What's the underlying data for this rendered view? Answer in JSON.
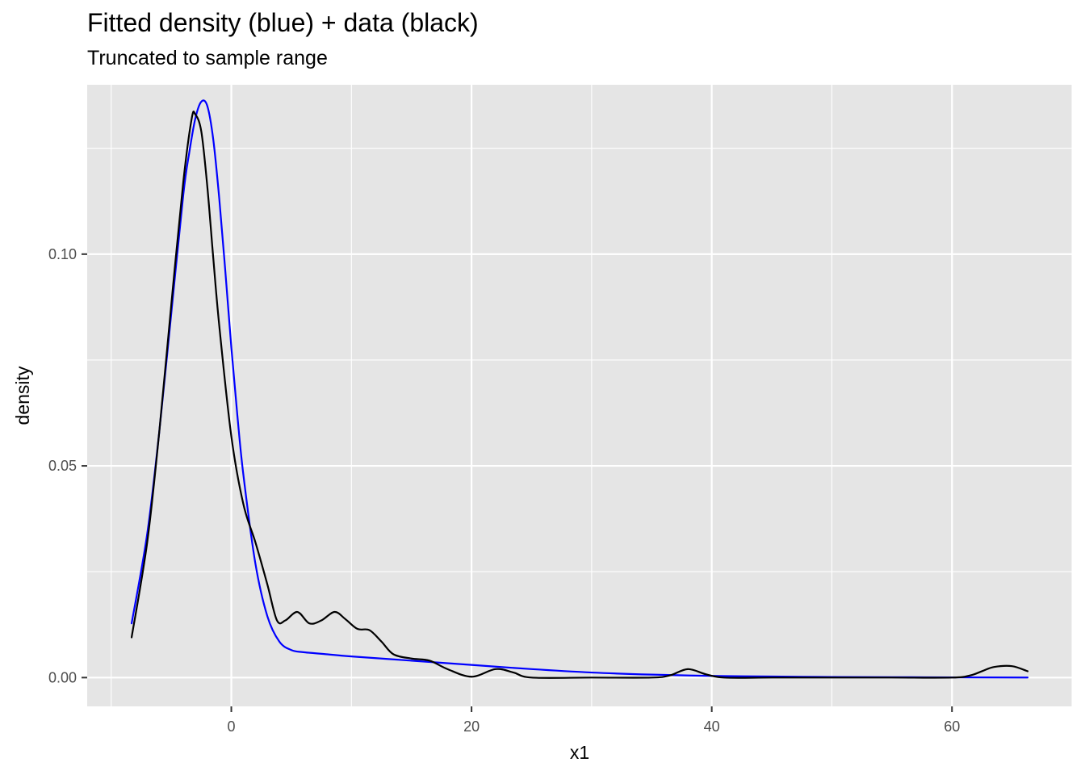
{
  "chart_data": {
    "type": "line",
    "title": "Fitted density (blue) + data (black)",
    "subtitle": "Truncated to sample range",
    "xlabel": "x1",
    "ylabel": "density",
    "xlim": [
      -12,
      70
    ],
    "ylim": [
      -0.0068,
      0.14
    ],
    "x_ticks": [
      0,
      20,
      40,
      60
    ],
    "x_tick_labels": [
      "0",
      "20",
      "40",
      "60"
    ],
    "y_ticks": [
      0.0,
      0.05,
      0.1
    ],
    "y_tick_labels": [
      "0.00",
      "0.05",
      "0.10"
    ],
    "grid": true,
    "colors": {
      "panel": "#e5e5e5",
      "grid": "#ffffff",
      "fitted": "#0000ff",
      "data": "#000000"
    },
    "series": [
      {
        "color": "#0000ff",
        "x": [
          -8.3,
          -7.0,
          -6.0,
          -5.0,
          -4.0,
          -3.5,
          -3.0,
          -2.5,
          -2.0,
          -1.5,
          -1.0,
          -0.5,
          0.0,
          0.5,
          1.0,
          2.0,
          3.0,
          4.0,
          5.0,
          6.0,
          8.0,
          10.0,
          15.0,
          20.0,
          25.0,
          30.0,
          35.0,
          40.0,
          45.0,
          50.0,
          55.0,
          60.0,
          66.3
        ],
        "y": [
          0.0128,
          0.034,
          0.058,
          0.086,
          0.114,
          0.124,
          0.132,
          0.136,
          0.135,
          0.127,
          0.113,
          0.096,
          0.078,
          0.062,
          0.048,
          0.027,
          0.0145,
          0.0085,
          0.0065,
          0.006,
          0.0055,
          0.005,
          0.004,
          0.003,
          0.002,
          0.0012,
          0.0007,
          0.0004,
          0.00025,
          0.00015,
          0.0001,
          5e-05,
          2e-05
        ]
      },
      {
        "color": "#000000",
        "x": [
          -8.3,
          -7.0,
          -6.0,
          -5.0,
          -4.0,
          -3.3,
          -3.0,
          -2.5,
          -2.0,
          -1.5,
          -1.0,
          0.0,
          1.0,
          2.0,
          3.0,
          3.8,
          4.5,
          5.5,
          6.5,
          7.5,
          8.6,
          9.5,
          10.5,
          11.5,
          12.5,
          13.5,
          15.0,
          16.5,
          18.0,
          20.0,
          22.0,
          23.5,
          25.0,
          30.0,
          35.0,
          36.5,
          38.0,
          39.5,
          41.0,
          45.0,
          50.0,
          55.0,
          60.0,
          61.5,
          62.5,
          63.5,
          65.0,
          66.3
        ],
        "y": [
          0.0095,
          0.032,
          0.058,
          0.088,
          0.117,
          0.132,
          0.133,
          0.129,
          0.116,
          0.099,
          0.083,
          0.057,
          0.041,
          0.032,
          0.022,
          0.0135,
          0.0135,
          0.0155,
          0.0128,
          0.0135,
          0.0155,
          0.0138,
          0.0115,
          0.0112,
          0.0085,
          0.0055,
          0.0045,
          0.004,
          0.002,
          0.0002,
          0.002,
          0.0012,
          0.0,
          0.0,
          0.0,
          0.0005,
          0.002,
          0.0008,
          0.0,
          0.0,
          0.0,
          0.0,
          0.0,
          0.0005,
          0.0015,
          0.0025,
          0.0027,
          0.0015
        ]
      }
    ]
  }
}
